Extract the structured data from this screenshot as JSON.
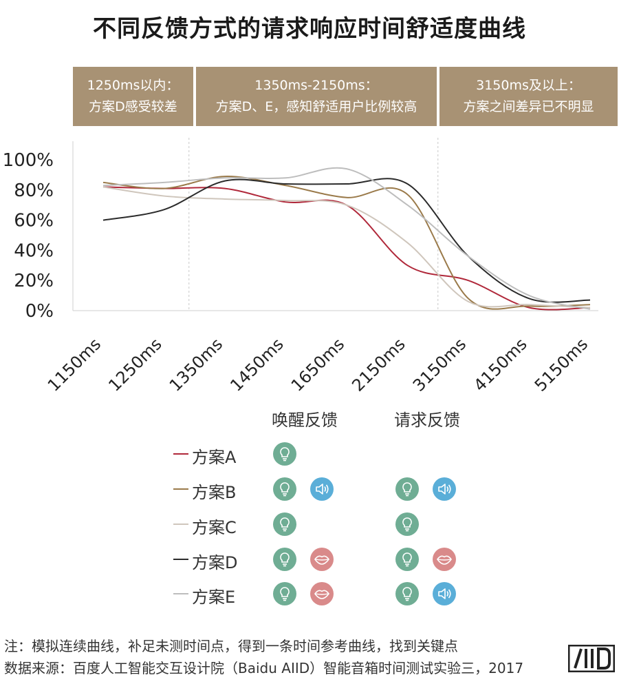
{
  "title": "不同反馈方式的请求响应时间舒适度曲线",
  "zones": [
    {
      "line1": "1250ms以内：",
      "line2": "方案D感受较差"
    },
    {
      "line1": "1350ms-2150ms：",
      "line2": "方案D、E，感知舒适用户比例较高"
    },
    {
      "line1": "3150ms及以上：",
      "line2": "方案之间差异已不明显"
    }
  ],
  "legend": {
    "header_wake": "唤醒反馈",
    "header_request": "请求反馈",
    "rows": [
      {
        "name": "方案A",
        "color": "#b0283a",
        "wake": [
          "bulb"
        ],
        "request": []
      },
      {
        "name": "方案B",
        "color": "#9a7a4a",
        "wake": [
          "bulb",
          "speaker"
        ],
        "request": [
          "bulb",
          "speaker"
        ]
      },
      {
        "name": "方案C",
        "color": "#cfc6bc",
        "wake": [
          "bulb"
        ],
        "request": [
          "bulb"
        ]
      },
      {
        "name": "方案D",
        "color": "#2b2b2b",
        "wake": [
          "bulb",
          "lips"
        ],
        "request": [
          "bulb",
          "lips"
        ]
      },
      {
        "name": "方案E",
        "color": "#bdbdbd",
        "wake": [
          "bulb",
          "lips"
        ],
        "request": [
          "bulb",
          "speaker"
        ]
      }
    ]
  },
  "icon_colors": {
    "bulb": "#6fad94",
    "speaker": "#5aaed8",
    "lips": "#d98a8a"
  },
  "notes": {
    "note_line": "注：模拟连续曲线，补足未测时间点，得到一条时间参考曲线，找到关键点",
    "source_line": "数据来源：百度人工智能交互设计院（Baidu AIID）智能音箱时间测试实验三，2017"
  },
  "logo_text": "AIID",
  "chart_data": {
    "type": "line",
    "title": "不同反馈方式的请求响应时间舒适度曲线",
    "xlabel": "",
    "ylabel": "",
    "categories": [
      "1150ms",
      "1250ms",
      "1350ms",
      "1450ms",
      "1650ms",
      "2150ms",
      "3150ms",
      "4150ms",
      "5150ms"
    ],
    "y_ticks": [
      "0%",
      "20%",
      "40%",
      "60%",
      "80%",
      "100%"
    ],
    "ylim": [
      0,
      100
    ],
    "grid": false,
    "vertical_markers_after": [
      "1250ms",
      "2150ms"
    ],
    "series": [
      {
        "name": "方案A",
        "color": "#b0283a",
        "values": [
          82,
          81,
          81,
          72,
          70,
          30,
          20,
          2,
          2
        ]
      },
      {
        "name": "方案B",
        "color": "#9a7a4a",
        "values": [
          85,
          81,
          89,
          83,
          75,
          77,
          8,
          3,
          4
        ]
      },
      {
        "name": "方案C",
        "color": "#cfc6bc",
        "values": [
          82,
          76,
          74,
          73,
          70,
          45,
          6,
          4,
          2
        ]
      },
      {
        "name": "方案D",
        "color": "#2b2b2b",
        "values": [
          60,
          67,
          86,
          84,
          84,
          84,
          36,
          8,
          7
        ]
      },
      {
        "name": "方案E",
        "color": "#bdbdbd",
        "values": [
          83,
          85,
          88,
          88,
          94,
          70,
          36,
          10,
          1
        ]
      }
    ]
  }
}
